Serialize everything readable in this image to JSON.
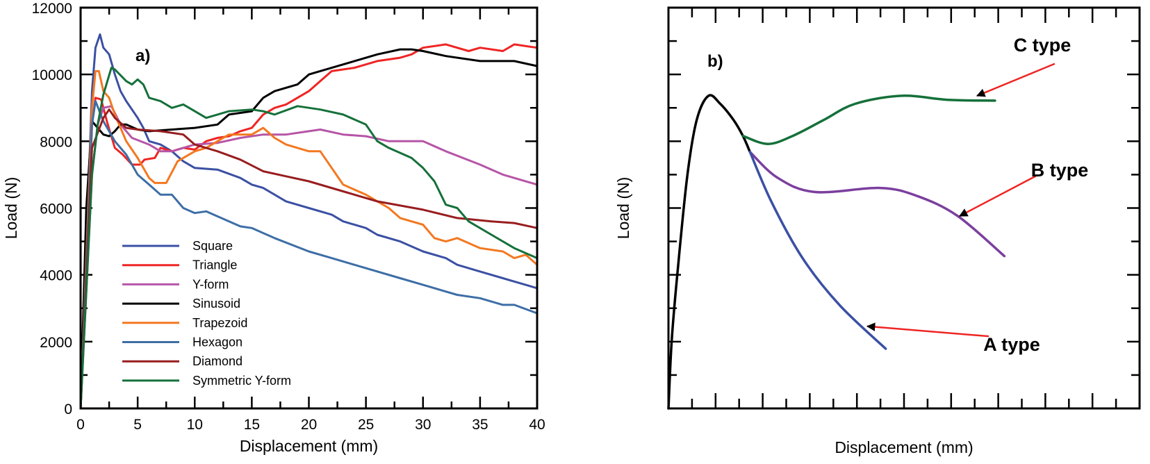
{
  "chart_data": [
    {
      "type": "line",
      "panel_label": "a)",
      "xlabel": "Displacement (mm)",
      "ylabel": "Load (N)",
      "xlim": [
        0,
        40
      ],
      "ylim": [
        0,
        12000
      ],
      "xticks": [
        "0",
        "5",
        "10",
        "15",
        "20",
        "25",
        "30",
        "35",
        "40"
      ],
      "yticks": [
        "0",
        "2000",
        "4000",
        "6000",
        "8000",
        "10000",
        "12000"
      ],
      "grid": false,
      "legend_position": "bottom-left",
      "series": [
        {
          "name": "Square",
          "color": "#3b50a3",
          "x": [
            0,
            1,
            1.3,
            1.7,
            2,
            2.5,
            3,
            3.5,
            4,
            5,
            5.5,
            6,
            7,
            8,
            9,
            10,
            12,
            14,
            15,
            16,
            18,
            20,
            22,
            23,
            25,
            26,
            28,
            30,
            32,
            33,
            35,
            37,
            38,
            40
          ],
          "y": [
            0,
            9500,
            10800,
            11200,
            10800,
            10600,
            10000,
            9500,
            9200,
            8700,
            8400,
            8000,
            7900,
            7700,
            7400,
            7200,
            7150,
            6900,
            6700,
            6600,
            6200,
            6000,
            5800,
            5600,
            5400,
            5200,
            5000,
            4700,
            4500,
            4300,
            4100,
            3900,
            3800,
            3600
          ]
        },
        {
          "name": "Triangle",
          "color": "#ee2524",
          "x": [
            0,
            1,
            1.3,
            1.8,
            2.3,
            3,
            3.7,
            4.5,
            5.2,
            5.6,
            6.5,
            7,
            8,
            9,
            10,
            11,
            12,
            13,
            14,
            15,
            16,
            17,
            18,
            19,
            20,
            21,
            22,
            24,
            26,
            28,
            29,
            30,
            32,
            34,
            35,
            37,
            38,
            40
          ],
          "y": [
            0,
            8500,
            9300,
            9250,
            8600,
            7800,
            7600,
            7300,
            7300,
            7450,
            7500,
            7800,
            7700,
            7800,
            7750,
            8000,
            8100,
            8150,
            8300,
            8400,
            8800,
            9000,
            9100,
            9300,
            9500,
            9800,
            10100,
            10200,
            10400,
            10500,
            10600,
            10800,
            10900,
            10700,
            10800,
            10700,
            10900,
            10800
          ]
        },
        {
          "name": "Y-form",
          "color": "#b655a6",
          "x": [
            0,
            1,
            1.5,
            2,
            2.7,
            3.5,
            4.5,
            6,
            7,
            8,
            9,
            10,
            12,
            14,
            16,
            18,
            20,
            21,
            23,
            25,
            27,
            30,
            32,
            35,
            37,
            40
          ],
          "y": [
            0,
            7000,
            8500,
            9000,
            9050,
            8500,
            8100,
            7900,
            7700,
            7700,
            7800,
            7900,
            7950,
            8100,
            8200,
            8200,
            8300,
            8350,
            8200,
            8150,
            8000,
            8000,
            7700,
            7300,
            7000,
            6700
          ]
        },
        {
          "name": "Sinusoid",
          "color": "#000000",
          "x": [
            0,
            0.5,
            1,
            1.5,
            2,
            2.5,
            3,
            3.5,
            4,
            5,
            6,
            8,
            10,
            12,
            13,
            15,
            16,
            17,
            19,
            20,
            22,
            24,
            26,
            28,
            29,
            30,
            32,
            35,
            38,
            40
          ],
          "y": [
            0,
            6000,
            8600,
            8400,
            8200,
            8150,
            8300,
            8500,
            8500,
            8350,
            8300,
            8350,
            8400,
            8500,
            8800,
            8900,
            9300,
            9500,
            9700,
            10000,
            10200,
            10400,
            10600,
            10750,
            10750,
            10700,
            10550,
            10400,
            10400,
            10250
          ]
        },
        {
          "name": "Trapezoid",
          "color": "#f37821",
          "x": [
            0,
            1,
            1.3,
            1.6,
            2,
            2.5,
            3,
            4,
            5,
            6,
            6.5,
            7.5,
            8.5,
            10,
            11,
            12,
            13,
            15,
            16,
            17,
            18,
            20,
            21,
            22,
            23,
            25,
            27,
            28,
            30,
            31,
            32,
            33,
            35,
            37,
            38,
            39,
            40
          ],
          "y": [
            0,
            9000,
            10100,
            10100,
            9500,
            9300,
            8800,
            8000,
            7500,
            6900,
            6750,
            6750,
            7400,
            7700,
            7800,
            8000,
            8200,
            8200,
            8400,
            8100,
            7900,
            7700,
            7700,
            7200,
            6700,
            6400,
            6000,
            5700,
            5500,
            5100,
            5000,
            5100,
            4800,
            4700,
            4500,
            4600,
            4300
          ]
        },
        {
          "name": "Hexagon",
          "color": "#3d6ea6",
          "x": [
            0,
            1,
            1.3,
            2,
            3,
            4,
            5,
            6,
            7,
            8,
            9,
            10,
            11,
            12,
            14,
            15,
            17,
            20,
            22,
            25,
            28,
            30,
            33,
            35,
            37,
            38,
            40
          ],
          "y": [
            0,
            8500,
            9200,
            8600,
            8000,
            7600,
            7000,
            6700,
            6400,
            6400,
            6000,
            5850,
            5900,
            5750,
            5450,
            5400,
            5100,
            4700,
            4500,
            4200,
            3900,
            3700,
            3400,
            3300,
            3100,
            3100,
            2850
          ]
        },
        {
          "name": "Diamond",
          "color": "#981d1f",
          "x": [
            0,
            1,
            2,
            2.5,
            3,
            4,
            5,
            7,
            9,
            10,
            12,
            14,
            16,
            18,
            20,
            23,
            26,
            30,
            33,
            36,
            38,
            40
          ],
          "y": [
            0,
            7800,
            8700,
            8950,
            8700,
            8400,
            8350,
            8300,
            8200,
            7900,
            7700,
            7450,
            7100,
            6950,
            6800,
            6500,
            6200,
            5950,
            5700,
            5600,
            5550,
            5400
          ]
        },
        {
          "name": "Symmetric Y-form",
          "color": "#15703a",
          "x": [
            0,
            1,
            1.5,
            2,
            2.7,
            3,
            4,
            4.5,
            5,
            5.5,
            6,
            7,
            8,
            9,
            10,
            11,
            12,
            13,
            15,
            16,
            17,
            19,
            21,
            23,
            25,
            26,
            27,
            29,
            30,
            31,
            32,
            33,
            34,
            36,
            38,
            40
          ],
          "y": [
            0,
            7000,
            8500,
            9400,
            10200,
            10150,
            9800,
            9700,
            9850,
            9700,
            9300,
            9200,
            9000,
            9100,
            8900,
            8700,
            8800,
            8900,
            8950,
            8900,
            8800,
            9050,
            8950,
            8800,
            8500,
            8000,
            7800,
            7500,
            7200,
            6800,
            6100,
            6000,
            5600,
            5200,
            4800,
            4500
          ]
        }
      ]
    },
    {
      "type": "line",
      "panel_label": "b)",
      "xlabel": "Displacement (mm)",
      "ylabel": "Load (N)",
      "xlim": [
        0,
        100
      ],
      "ylim": [
        0,
        100
      ],
      "tick_labels_shown": false,
      "grid": false,
      "series": [
        {
          "segment": "initial",
          "color": "#000000",
          "x": [
            0,
            0.7,
            2,
            4,
            6,
            8.5,
            11,
            13.8,
            15.8,
            17.3
          ],
          "y": [
            0,
            17,
            35,
            58,
            72,
            78,
            76,
            72,
            68,
            64
          ]
        },
        {
          "segment": "C",
          "color": "#15703a",
          "x": [
            15.8,
            21.1,
            26.4,
            33,
            39.6,
            49.5,
            59.4,
            69.3
          ],
          "y": [
            68,
            66,
            68,
            72,
            76,
            78,
            77,
            76.8
          ]
        },
        {
          "segment": "B",
          "color": "#7b3f9e",
          "x": [
            17.3,
            23.1,
            31,
            44.9,
            52.8,
            61.4,
            71.3
          ],
          "y": [
            64,
            57.6,
            54,
            55,
            53,
            48,
            38
          ]
        },
        {
          "segment": "A",
          "color": "#3b50a3",
          "x": [
            17.3,
            21.8,
            28.4,
            36.3,
            46.1
          ],
          "y": [
            64,
            51.7,
            37.6,
            25.8,
            14.9
          ]
        }
      ],
      "annotations": [
        {
          "text": "C type",
          "arrow_color": "#ee2524",
          "from": [
            82,
            86
          ],
          "to": [
            65.5,
            78
          ]
        },
        {
          "text": "B type",
          "arrow_color": "#ee2524",
          "from": [
            78,
            58
          ],
          "to": [
            61.8,
            48
          ]
        },
        {
          "text": "A type",
          "arrow_color": "#ee2524",
          "from": [
            68,
            18
          ],
          "to": [
            42.2,
            20.5
          ]
        }
      ]
    }
  ]
}
